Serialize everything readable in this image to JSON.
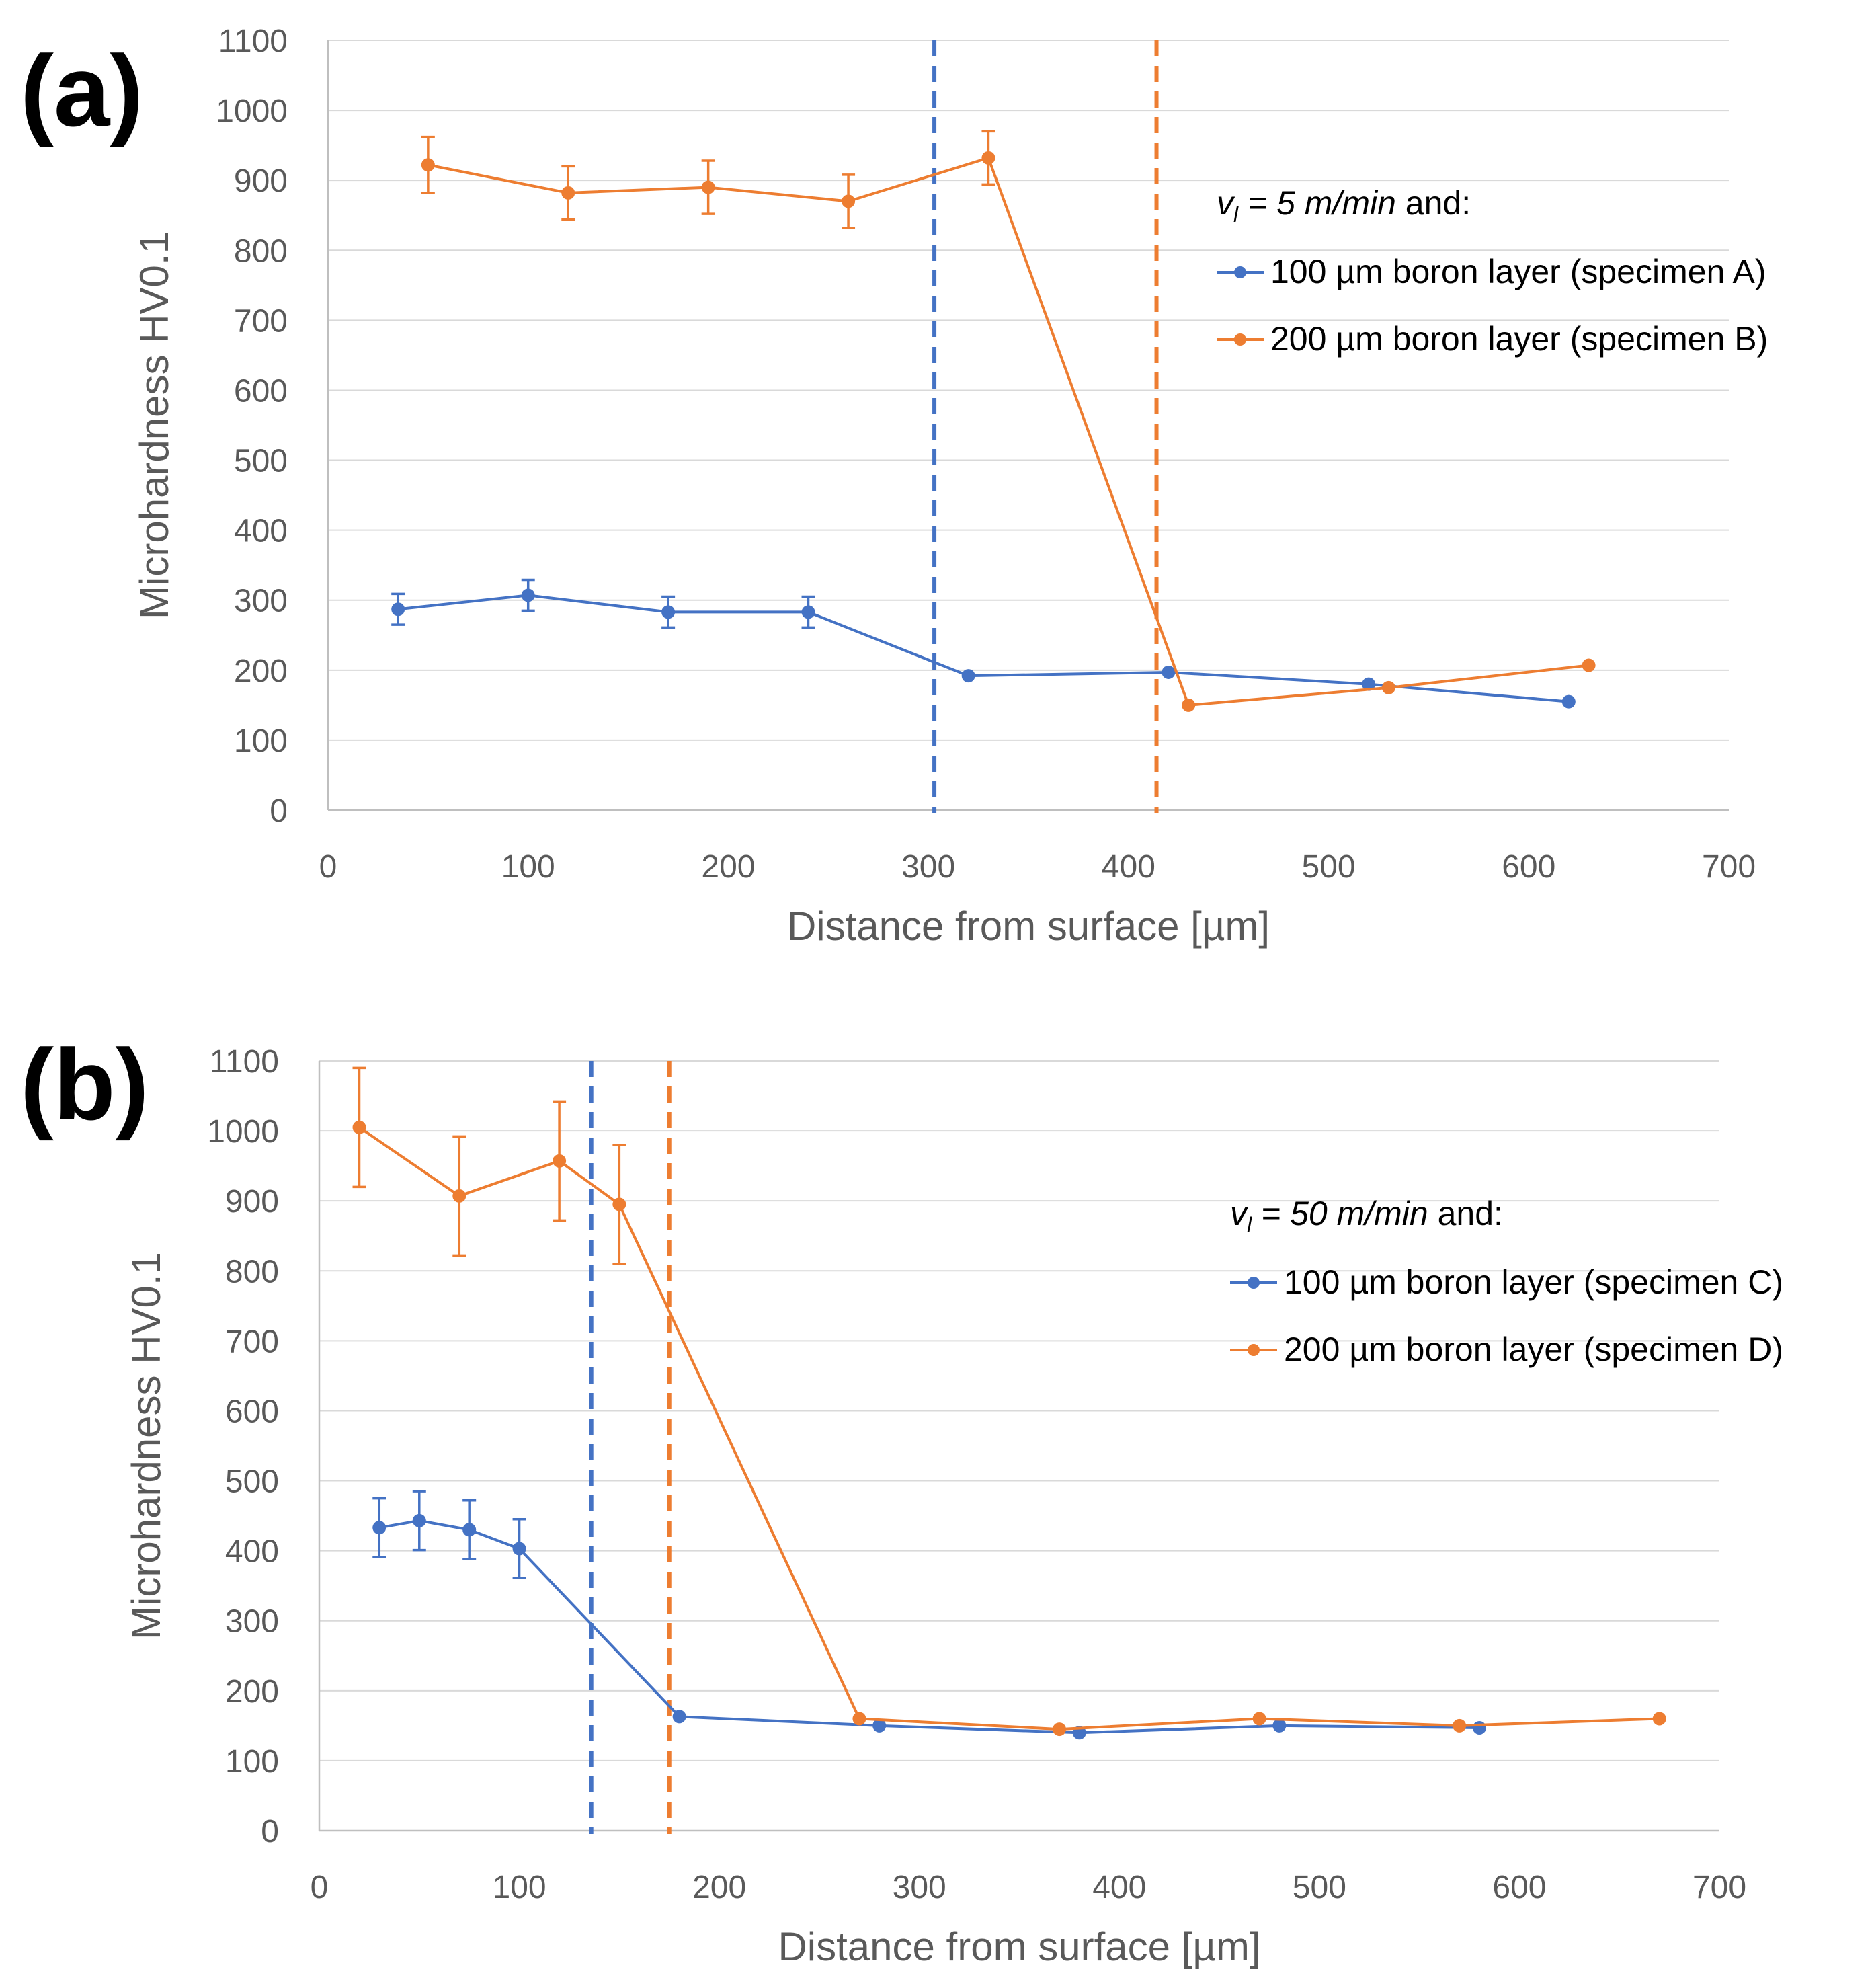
{
  "colors": {
    "blue": "#4472C4",
    "orange": "#ED7D31",
    "grid": "#D9D9D9",
    "axis": "#BFBFBF"
  },
  "chart_data": [
    {
      "type": "line",
      "panel_label": "(a)",
      "xlabel": "Distance from surface [µm]",
      "ylabel": "Microhardness HV0.1",
      "xlim": [
        0,
        700
      ],
      "ylim": [
        0,
        1100
      ],
      "xticks": [
        0,
        100,
        200,
        300,
        400,
        500,
        600,
        700
      ],
      "yticks": [
        0,
        100,
        200,
        300,
        400,
        500,
        600,
        700,
        800,
        900,
        1000,
        1100
      ],
      "legend_condition_symbol": "v",
      "legend_condition_sub": "l",
      "legend_condition_value": " = 5 m/min",
      "legend_condition_suffix": " and:",
      "vlines": [
        {
          "x": 303,
          "color": "blue"
        },
        {
          "x": 414,
          "color": "orange"
        }
      ],
      "series": [
        {
          "name": "100 µm boron layer (specimen A)",
          "color": "blue",
          "x": [
            35,
            100,
            170,
            240,
            320,
            420,
            520,
            620
          ],
          "y": [
            287,
            307,
            283,
            283,
            192,
            197,
            180,
            155
          ],
          "err": [
            22,
            22,
            22,
            22,
            0,
            0,
            0,
            0
          ]
        },
        {
          "name": "200 µm boron layer (specimen B)",
          "color": "orange",
          "x": [
            50,
            120,
            190,
            260,
            330,
            430,
            530,
            630
          ],
          "y": [
            922,
            882,
            890,
            870,
            932,
            150,
            175,
            207
          ],
          "err": [
            40,
            38,
            38,
            38,
            38,
            0,
            0,
            0
          ]
        }
      ]
    },
    {
      "type": "line",
      "panel_label": "(b)",
      "xlabel": "Distance from surface [µm]",
      "ylabel": "Microhardness HV0.1",
      "xlim": [
        0,
        700
      ],
      "ylim": [
        0,
        1100
      ],
      "xticks": [
        0,
        100,
        200,
        300,
        400,
        500,
        600,
        700
      ],
      "yticks": [
        0,
        100,
        200,
        300,
        400,
        500,
        600,
        700,
        800,
        900,
        1000,
        1100
      ],
      "legend_condition_symbol": "v",
      "legend_condition_sub": "l",
      "legend_condition_value": " = 50 m/min",
      "legend_condition_suffix": " and:",
      "vlines": [
        {
          "x": 136,
          "color": "blue"
        },
        {
          "x": 175,
          "color": "orange"
        }
      ],
      "series": [
        {
          "name": "100 µm boron layer (specimen C)",
          "color": "blue",
          "x": [
            30,
            50,
            75,
            100,
            180,
            280,
            380,
            480,
            580
          ],
          "y": [
            433,
            443,
            430,
            403,
            163,
            150,
            140,
            150,
            147
          ],
          "err": [
            42,
            42,
            42,
            42,
            0,
            0,
            0,
            0,
            0
          ]
        },
        {
          "name": "200 µm boron layer (specimen D)",
          "color": "orange",
          "x": [
            20,
            70,
            120,
            150,
            270,
            370,
            470,
            570,
            670
          ],
          "y": [
            1005,
            907,
            957,
            895,
            160,
            145,
            160,
            150,
            160
          ],
          "err": [
            85,
            85,
            85,
            85,
            0,
            0,
            0,
            0,
            0
          ]
        }
      ]
    }
  ]
}
